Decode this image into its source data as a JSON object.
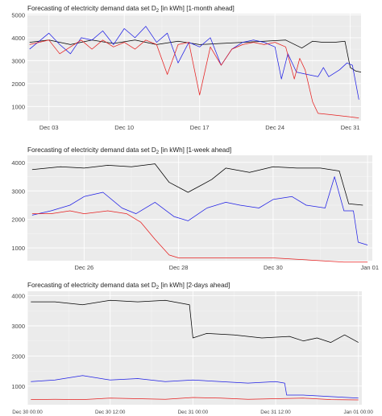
{
  "charts": [
    {
      "title_main": "Forecasting of electricity demand data set D",
      "title_sub": "2",
      "title_rest": " [in kWh] [1-month ahead]"
    },
    {
      "title_main": "Forecasting of electricity demand data set D",
      "title_sub": "2",
      "title_rest": " [in kWh] [1-week ahead]"
    },
    {
      "title_main": "Forecasting of electricity demand data set D",
      "title_sub": "2",
      "title_rest": " [in kWh] [2-days ahead]"
    }
  ],
  "colors": {
    "panel": "#ebebeb",
    "grid": "#ffffff",
    "black": "#000000",
    "blue": "#1f1fe6",
    "red": "#e61f1f"
  },
  "chart_data": [
    {
      "type": "line",
      "title": "Forecasting of electricity demand data set D2 [in kWh] [1-month ahead]",
      "x_ticks": [
        "Dec 03",
        "Dec 10",
        "Dec 17",
        "Dec 24",
        "Dec 31"
      ],
      "x_range_days": [
        1,
        32
      ],
      "y_ticks": [
        1000,
        2000,
        3000,
        4000,
        5000
      ],
      "ylim": [
        380,
        5050
      ],
      "grid": true,
      "series": [
        {
          "color": "black",
          "x": [
            1.2,
            3,
            5,
            7,
            9,
            11,
            13,
            15,
            17,
            19,
            21,
            23,
            25,
            26.5,
            27.5,
            28.5,
            29.5,
            30.5,
            31,
            31.5,
            32
          ],
          "y": [
            3800,
            3900,
            3700,
            3900,
            3750,
            3900,
            3700,
            3850,
            3700,
            3750,
            3800,
            3850,
            3900,
            3550,
            3850,
            3800,
            3800,
            3850,
            2700,
            2550,
            2500
          ]
        },
        {
          "color": "blue",
          "x": [
            1.2,
            3,
            4,
            5,
            6,
            7,
            8,
            9,
            10,
            11,
            12,
            13,
            14,
            15,
            16,
            17,
            18,
            19,
            20,
            21,
            22,
            23,
            24,
            24.6,
            25.2,
            26,
            27,
            28,
            28.5,
            29,
            30,
            30.7,
            31.2,
            31.8
          ],
          "y": [
            3500,
            4200,
            3700,
            3300,
            4000,
            3900,
            4300,
            3700,
            4400,
            4000,
            4500,
            3800,
            4200,
            2900,
            3800,
            3600,
            4000,
            2800,
            3500,
            3800,
            3900,
            3800,
            3600,
            2200,
            3300,
            2500,
            2400,
            2300,
            2700,
            2300,
            2600,
            2900,
            2800,
            1300
          ]
        },
        {
          "color": "red",
          "x": [
            1.2,
            3,
            4,
            5,
            6,
            7,
            8,
            9,
            10,
            11,
            12,
            13,
            14,
            15,
            16,
            17,
            18,
            19,
            20,
            21,
            22,
            23,
            24,
            25,
            25.8,
            26.3,
            26.8,
            27.5,
            28,
            29,
            30,
            31,
            31.8
          ],
          "y": [
            3700,
            3900,
            3300,
            3600,
            3900,
            3500,
            3900,
            3600,
            3800,
            3500,
            3900,
            3700,
            2400,
            3700,
            3800,
            1500,
            3600,
            2800,
            3500,
            3700,
            3800,
            3700,
            3800,
            3600,
            2200,
            3100,
            2600,
            1200,
            700,
            650,
            600,
            550,
            500
          ]
        }
      ]
    },
    {
      "type": "line",
      "title": "Forecasting of electricity demand data set D2 [in kWh] [1-week ahead]",
      "x_ticks": [
        "Dec 26",
        "Dec 28",
        "Dec 30",
        "Jan 01"
      ],
      "x_range_days": [
        24.8,
        32.1
      ],
      "y_ticks": [
        1000,
        2000,
        3000,
        4000
      ],
      "ylim": [
        550,
        4250
      ],
      "grid": true,
      "series": [
        {
          "color": "black",
          "x": [
            24.9,
            25.5,
            26,
            26.5,
            27,
            27.5,
            27.8,
            28.2,
            28.7,
            29,
            29.5,
            30,
            30.5,
            31,
            31.4,
            31.6,
            31.9
          ],
          "y": [
            3750,
            3850,
            3800,
            3900,
            3850,
            3950,
            3300,
            2950,
            3400,
            3800,
            3650,
            3850,
            3800,
            3800,
            3700,
            2550,
            2500
          ]
        },
        {
          "color": "blue",
          "x": [
            24.9,
            25.3,
            25.7,
            26,
            26.4,
            26.8,
            27.1,
            27.5,
            27.9,
            28.2,
            28.6,
            29,
            29.3,
            29.7,
            30,
            30.4,
            30.7,
            31.1,
            31.3,
            31.5,
            31.7,
            31.8,
            32
          ],
          "y": [
            2150,
            2300,
            2500,
            2800,
            2950,
            2400,
            2200,
            2600,
            2100,
            1950,
            2400,
            2600,
            2500,
            2400,
            2700,
            2800,
            2500,
            2400,
            3500,
            2300,
            2300,
            1200,
            1100
          ]
        },
        {
          "color": "red",
          "x": [
            24.9,
            25.3,
            25.7,
            26,
            26.5,
            26.9,
            27.2,
            27.5,
            27.8,
            28,
            28.5,
            29,
            29.5,
            30,
            30.5,
            31,
            31.5,
            32
          ],
          "y": [
            2200,
            2200,
            2300,
            2200,
            2300,
            2200,
            1900,
            1300,
            750,
            650,
            650,
            650,
            650,
            650,
            600,
            550,
            500,
            500
          ]
        }
      ]
    },
    {
      "type": "line",
      "title": "Forecasting of electricity demand data set D2 [in kWh] [2-days ahead]",
      "x_ticks": [
        "Dec 30 00:00",
        "Dec 30 12:00",
        "Dec 31 00:00",
        "Dec 31 12:00",
        "Jan 01 00:00"
      ],
      "x_range_hours": [
        0,
        48.5
      ],
      "y_ticks": [
        1000,
        2000,
        3000,
        4000
      ],
      "ylim": [
        380,
        4150
      ],
      "grid": true,
      "series": [
        {
          "color": "black",
          "x": [
            0.5,
            4,
            8,
            12,
            16,
            20,
            23.5,
            24,
            26,
            30,
            34,
            38,
            40,
            42,
            44,
            46,
            48
          ],
          "y": [
            3800,
            3800,
            3700,
            3850,
            3800,
            3850,
            3700,
            2600,
            2750,
            2700,
            2600,
            2650,
            2500,
            2600,
            2450,
            2700,
            2450
          ]
        },
        {
          "color": "blue",
          "x": [
            0.5,
            4,
            8,
            12,
            16,
            20,
            24,
            28,
            32,
            36,
            37.3,
            37.6,
            40,
            44,
            48
          ],
          "y": [
            1150,
            1200,
            1350,
            1200,
            1250,
            1150,
            1200,
            1150,
            1100,
            1150,
            1100,
            700,
            700,
            650,
            600
          ]
        },
        {
          "color": "red",
          "x": [
            0.5,
            4,
            8,
            12,
            16,
            20,
            24,
            28,
            32,
            36,
            40,
            44,
            48
          ],
          "y": [
            550,
            560,
            550,
            600,
            580,
            560,
            620,
            600,
            560,
            580,
            600,
            550,
            540
          ]
        }
      ]
    }
  ]
}
